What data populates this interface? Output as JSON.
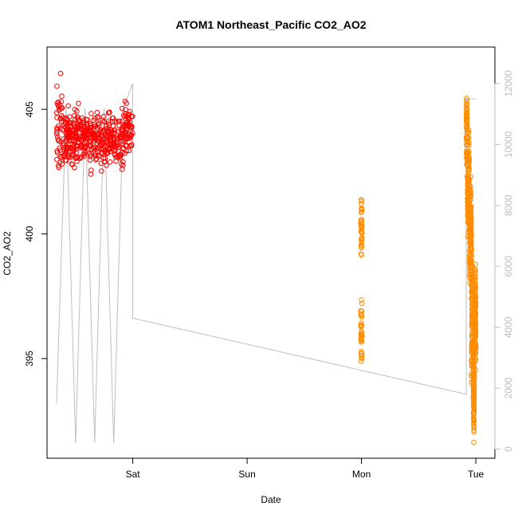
{
  "chart_data": {
    "type": "scatter",
    "title": "ATOM1 Northeast_Pacific CO2_AO2",
    "xlabel": "Date",
    "ylabel": "CO2_AO2",
    "x_ticks": [
      "Sat",
      "Sun",
      "Mon",
      "Tue"
    ],
    "xlim": [
      "Fri 06:00",
      "Tue 04:00"
    ],
    "ylim": [
      391.0,
      407.5
    ],
    "y_ticks": [
      395,
      400,
      405
    ],
    "y2lim": [
      -300,
      13200
    ],
    "y2_ticks": [
      0,
      2000,
      4000,
      6000,
      8000,
      10000,
      12000
    ],
    "grid": false,
    "colors": {
      "series1": "#ff0000",
      "series2": "#ff8c00",
      "line": "#bebebe",
      "axis": "#000000",
      "axis2": "#bdbdbd"
    },
    "series": [
      {
        "marker": "open-circle",
        "color": "#ff0000",
        "x_range": [
          "Fri 08:00",
          "Fri 24:00"
        ],
        "y_mean": 403.8,
        "y_range": [
          401.6,
          407.1
        ]
      },
      {
        "marker": "open-circle",
        "color": "#ff8c00",
        "segments": [
          {
            "x": "Mon 00:00",
            "y_range": [
              393.2,
              402.4
            ]
          },
          {
            "x_range": [
              "Mon 22:00",
              "Tue 00:00"
            ],
            "y_range": [
              390.8,
              405.5
            ]
          }
        ]
      },
      {
        "marker": "line",
        "axis": "right",
        "color": "#bebebe",
        "points": [
          {
            "x": "Fri 08:00",
            "y": 1500
          },
          {
            "x": "Fri 10:00",
            "y": 11200
          },
          {
            "x": "Fri 12:00",
            "y": 200
          },
          {
            "x": "Fri 14:00",
            "y": 11200
          },
          {
            "x": "Fri 16:00",
            "y": 200
          },
          {
            "x": "Fri 18:00",
            "y": 11200
          },
          {
            "x": "Fri 20:00",
            "y": 200
          },
          {
            "x": "Fri 22:00",
            "y": 11200
          },
          {
            "x": "Sat 00:00",
            "y": 12000
          },
          {
            "x": "Sat 00:00",
            "y": 4300
          },
          {
            "x": "Mon 22:00",
            "y": 1800
          },
          {
            "x": "Mon 22:00",
            "y": 11500
          },
          {
            "x": "Tue 00:00",
            "y": 11500
          }
        ]
      }
    ]
  }
}
